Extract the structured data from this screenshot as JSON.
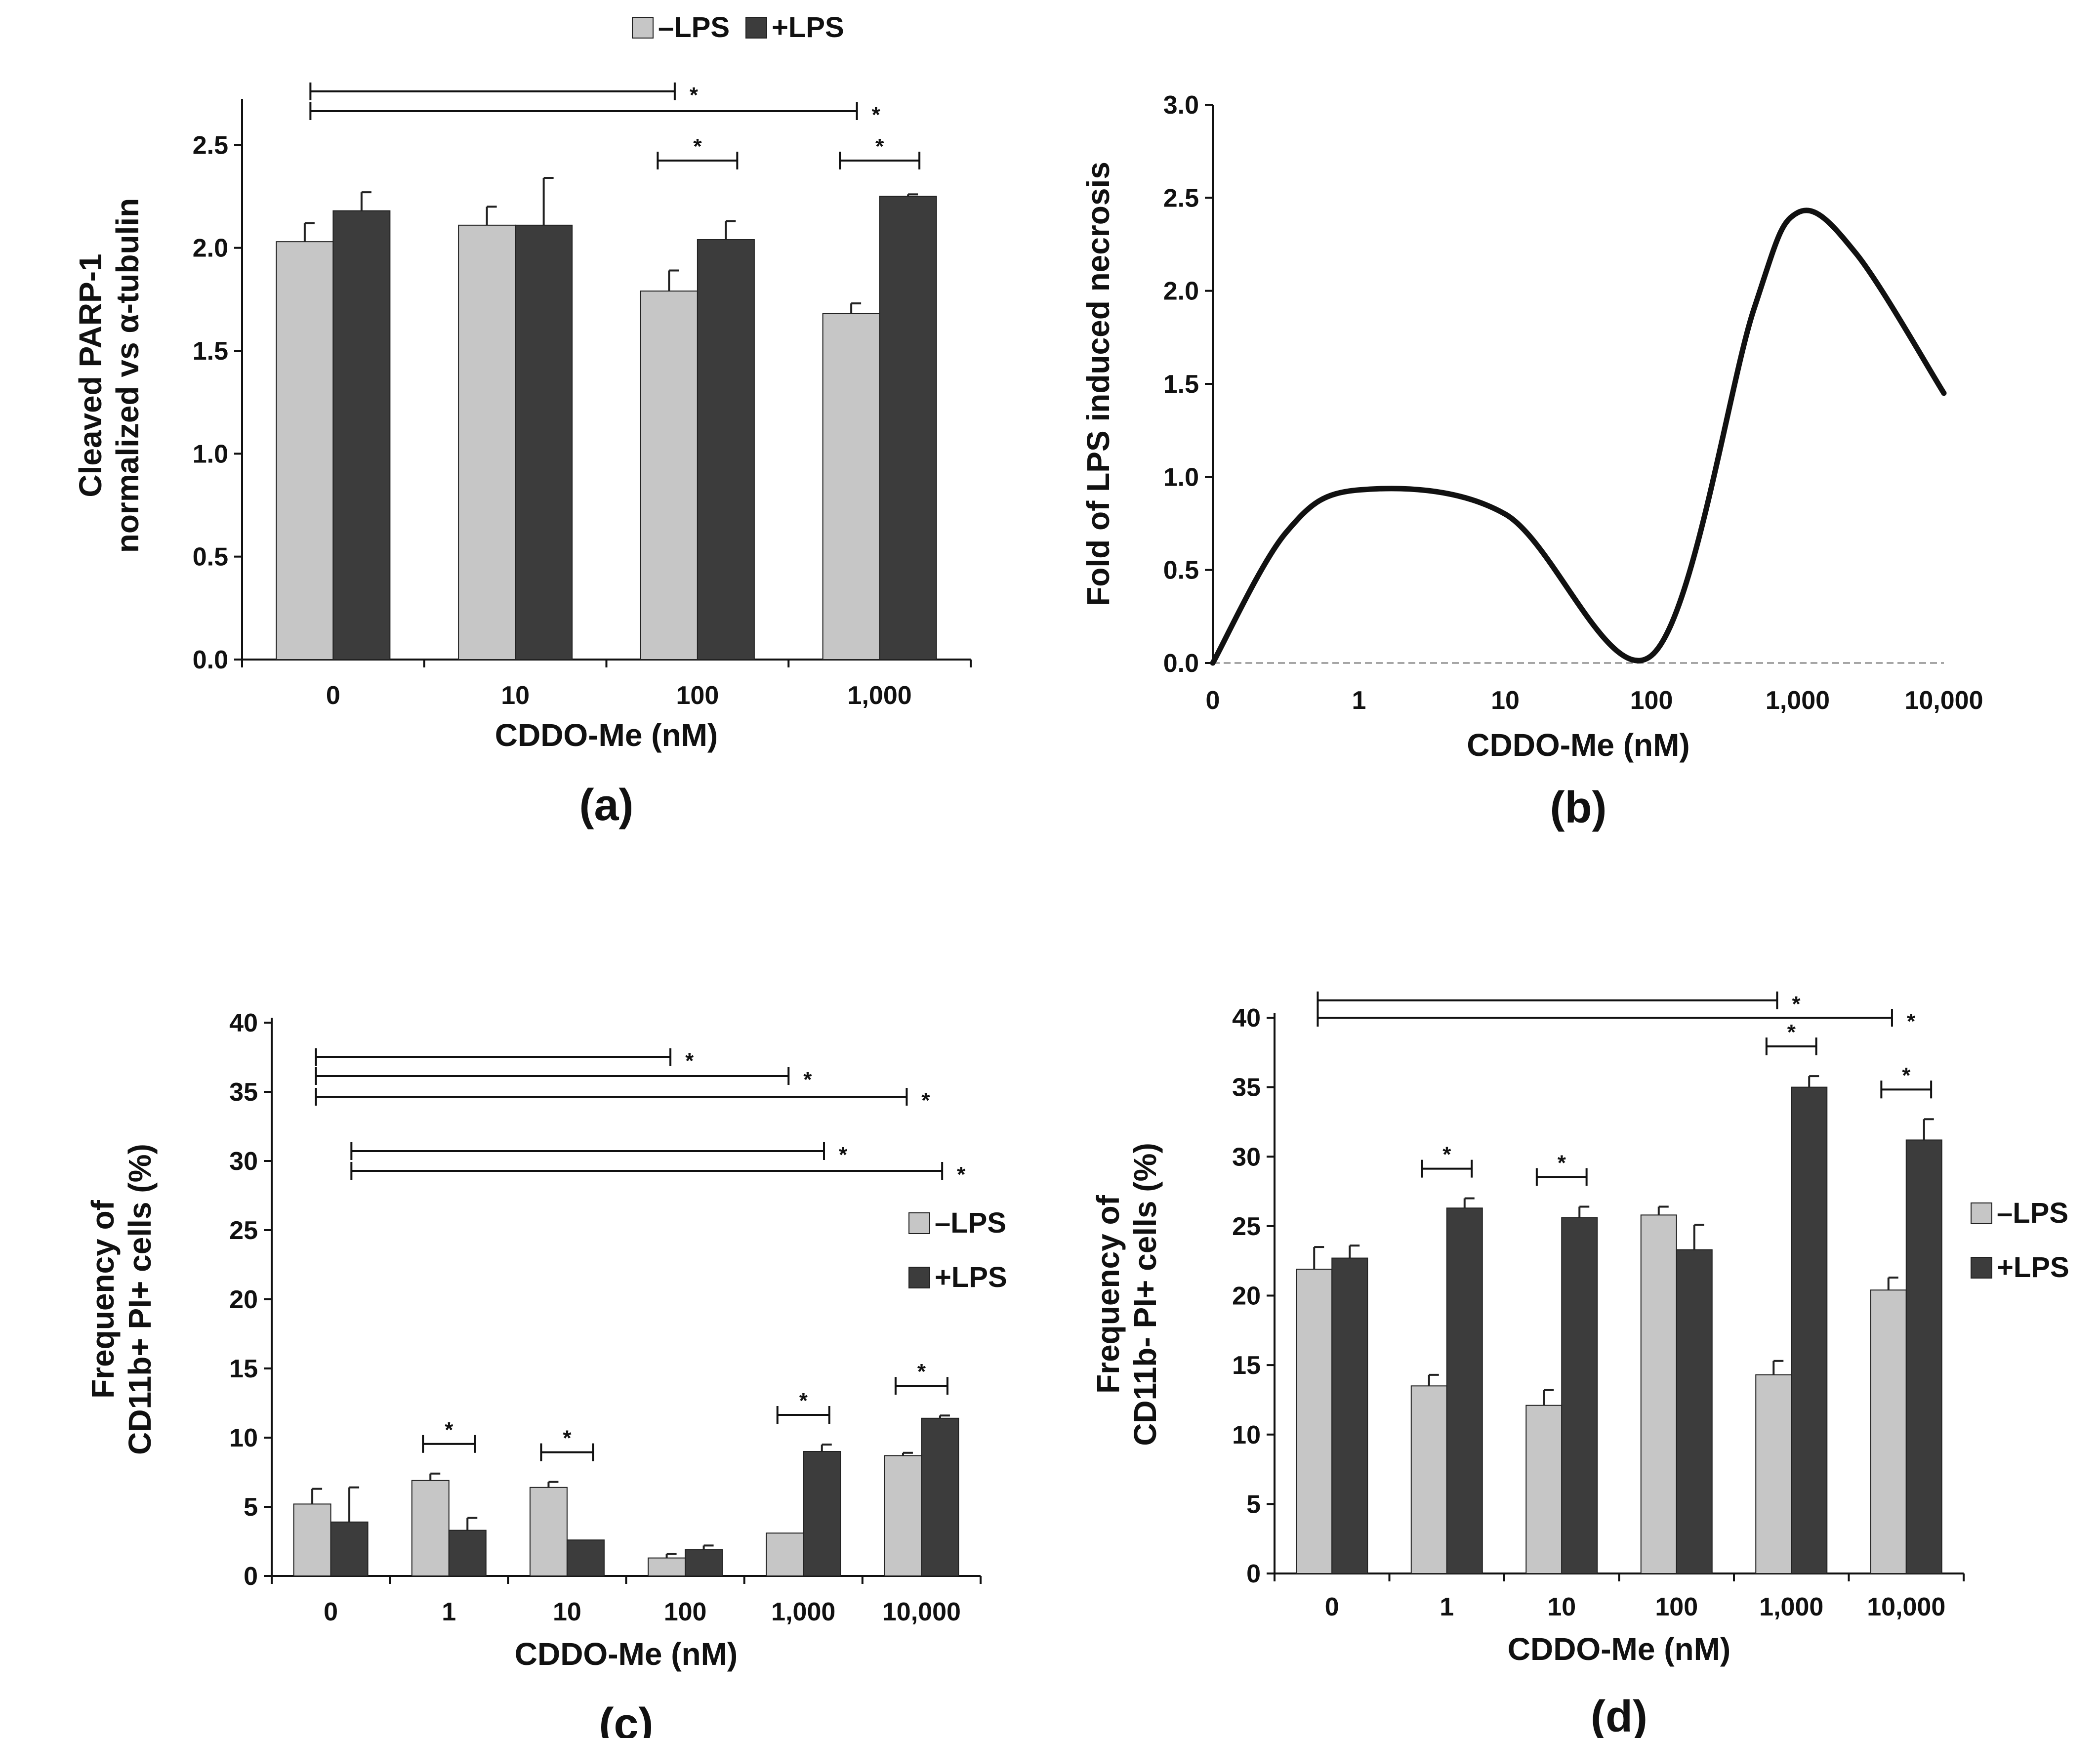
{
  "colors": {
    "minus_lps": "#c6c6c6",
    "plus_lps": "#3c3c3c",
    "axis": "#111111"
  },
  "chart_data": [
    {
      "id": "a",
      "type": "bar",
      "panel_label": "(a)",
      "xlabel": "CDDO-Me (nM)",
      "ylabel_lines": [
        "Cleaved PARP-1",
        "normalized vs α-tubulin"
      ],
      "categories": [
        "0",
        "10",
        "100",
        "1,000"
      ],
      "ylim": [
        0,
        2.7
      ],
      "yticks": [
        "0.0",
        "0.5",
        "1.0",
        "1.5",
        "2.0",
        "2.5"
      ],
      "legend": [
        "–LPS",
        "+LPS"
      ],
      "legend_position": "top",
      "series": [
        {
          "name": "–LPS",
          "values": [
            2.03,
            2.11,
            1.79,
            1.68
          ],
          "errors": [
            0.09,
            0.09,
            0.1,
            0.05
          ]
        },
        {
          "name": "+LPS",
          "values": [
            2.18,
            2.11,
            2.04,
            2.25
          ],
          "errors": [
            0.09,
            0.23,
            0.09,
            0.01
          ]
        }
      ],
      "significance": [
        {
          "type": "span",
          "from": 0,
          "to": 2,
          "label": "*"
        },
        {
          "type": "span",
          "from": 0,
          "to": 3,
          "label": "*"
        },
        {
          "type": "pair",
          "cat": 2,
          "label": "*"
        },
        {
          "type": "pair",
          "cat": 3,
          "label": "*"
        }
      ]
    },
    {
      "id": "b",
      "type": "line",
      "panel_label": "(b)",
      "xlabel": "CDDO-Me (nM)",
      "ylabel": "Fold of LPS induced necrosis",
      "categories": [
        "0",
        "1",
        "10",
        "100",
        "1,000",
        "10,000"
      ],
      "ylim": [
        0,
        3
      ],
      "yticks": [
        "0.0",
        "0.5",
        "1.0",
        "1.5",
        "2.0",
        "2.5",
        "3.0"
      ],
      "series": [
        {
          "name": "Fold",
          "x": [
            0,
            0.5,
            1,
            2,
            3,
            3.7,
            4,
            4.4,
            5
          ],
          "values": [
            0,
            0.7,
            0.93,
            0.8,
            0.04,
            1.9,
            2.42,
            2.2,
            1.45
          ]
        }
      ]
    },
    {
      "id": "c",
      "type": "bar",
      "panel_label": "(c)",
      "xlabel": "CDDO-Me (nM)",
      "ylabel_lines": [
        "Frequency of",
        "CD11b+ PI+ cells (%)"
      ],
      "categories": [
        "0",
        "1",
        "10",
        "100",
        "1,000",
        "10,000"
      ],
      "ylim": [
        0,
        40
      ],
      "yticks": [
        "0",
        "5",
        "10",
        "15",
        "20",
        "25",
        "30",
        "35",
        "40"
      ],
      "legend": [
        "–LPS",
        "+LPS"
      ],
      "legend_position": "right",
      "series": [
        {
          "name": "–LPS",
          "values": [
            5.2,
            6.9,
            6.4,
            1.3,
            3.1,
            8.7
          ],
          "errors": [
            1.1,
            0.5,
            0.4,
            0.3,
            0,
            0.2
          ]
        },
        {
          "name": "+LPS",
          "values": [
            3.9,
            3.3,
            2.6,
            1.9,
            9.0,
            11.4
          ],
          "errors": [
            2.5,
            0.9,
            0,
            0.3,
            0.5,
            0.2
          ]
        }
      ],
      "significance": [
        {
          "type": "span",
          "from": 0,
          "to": 3,
          "label": "*"
        },
        {
          "type": "span",
          "from": 0,
          "to": 4,
          "label": "*"
        },
        {
          "type": "span",
          "from": 0,
          "to": 5,
          "label": "*"
        },
        {
          "type": "span",
          "from": 0.3,
          "to": 4.3,
          "label": "*"
        },
        {
          "type": "span",
          "from": 0.3,
          "to": 5.3,
          "label": "*"
        },
        {
          "type": "pair",
          "cat": 1,
          "label": "*"
        },
        {
          "type": "pair",
          "cat": 2,
          "label": "*"
        },
        {
          "type": "pair",
          "cat": 4,
          "label": "*"
        },
        {
          "type": "pair",
          "cat": 5,
          "label": "*"
        }
      ]
    },
    {
      "id": "d",
      "type": "bar",
      "panel_label": "(d)",
      "xlabel": "CDDO-Me (nM)",
      "ylabel_lines": [
        "Frequency of",
        "CD11b- PI+ cells (%)"
      ],
      "categories": [
        "0",
        "1",
        "10",
        "100",
        "1,000",
        "10,000"
      ],
      "ylim": [
        0,
        40
      ],
      "yticks": [
        "0",
        "5",
        "10",
        "15",
        "20",
        "25",
        "30",
        "35",
        "40"
      ],
      "legend": [
        "–LPS",
        "+LPS"
      ],
      "legend_position": "right",
      "series": [
        {
          "name": "–LPS",
          "values": [
            21.9,
            13.5,
            12.1,
            25.8,
            14.3,
            20.4
          ],
          "errors": [
            1.6,
            0.8,
            1.1,
            0.6,
            1.0,
            0.9
          ]
        },
        {
          "name": "+LPS",
          "values": [
            22.7,
            26.3,
            25.6,
            23.3,
            35.0,
            31.2
          ],
          "errors": [
            0.9,
            0.7,
            0.8,
            1.8,
            0.8,
            1.5
          ]
        }
      ],
      "significance": [
        {
          "type": "span",
          "from": 0,
          "to": 4,
          "label": "*"
        },
        {
          "type": "span",
          "from": 0,
          "to": 5,
          "label": "*"
        },
        {
          "type": "pair",
          "cat": 1,
          "label": "*"
        },
        {
          "type": "pair",
          "cat": 2,
          "label": "*"
        },
        {
          "type": "pair",
          "cat": 4,
          "label": "*"
        },
        {
          "type": "pair",
          "cat": 5,
          "label": "*"
        }
      ]
    }
  ]
}
